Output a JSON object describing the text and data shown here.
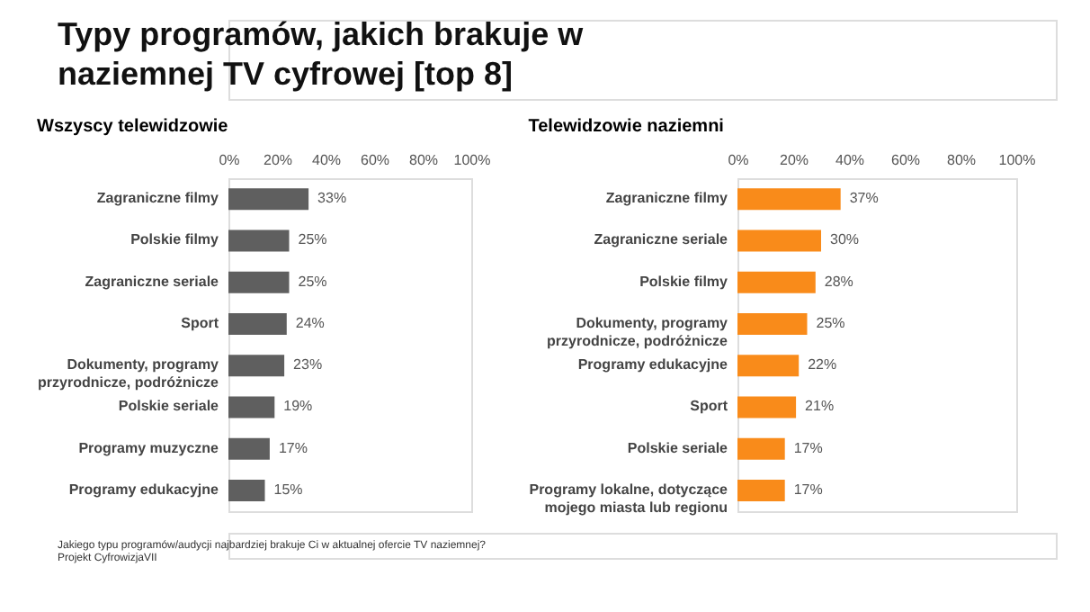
{
  "chart_data": [
    {
      "type": "bar",
      "orientation": "horizontal",
      "title": "Typy programów, jakich brakuje w naziemnej TV cyfrowej [top 8]",
      "subtitle": "Wszyscy telewidzowie",
      "categories": [
        "Zagraniczne filmy",
        "Polskie filmy",
        "Zagraniczne seriale",
        "Sport",
        "Dokumenty, programy przyrodnicze, podróżnicze",
        "Polskie seriale",
        "Programy muzyczne",
        "Programy edukacyjne"
      ],
      "values": [
        33,
        25,
        25,
        24,
        23,
        19,
        17,
        15
      ],
      "value_labels": [
        "33%",
        "25%",
        "25%",
        "24%",
        "23%",
        "19%",
        "17%",
        "15%"
      ],
      "color": "#5f5f5f",
      "xlim": [
        0,
        100
      ],
      "xticks": [
        {
          "value": 0,
          "label": "0%"
        },
        {
          "value": 20,
          "label": "20%"
        },
        {
          "value": 40,
          "label": "40%"
        },
        {
          "value": 60,
          "label": "60%"
        },
        {
          "value": 80,
          "label": "80%"
        },
        {
          "value": 100,
          "label": "100%"
        }
      ],
      "grid": false,
      "annotations": [
        "Jakiego typu programów/audycji najbardziej brakuje Ci w aktualnej ofercie TV naziemnej?",
        "Projekt CyfrowizjaVII"
      ]
    },
    {
      "type": "bar",
      "orientation": "horizontal",
      "subtitle": "Telewidzowie naziemni",
      "categories": [
        "Zagraniczne filmy",
        "Zagraniczne seriale",
        "Polskie filmy",
        "Dokumenty, programy przyrodnicze, podróżnicze",
        "Programy edukacyjne",
        "Sport",
        "Polskie seriale",
        "Programy lokalne, dotyczące mojego miasta lub regionu"
      ],
      "values": [
        37,
        30,
        28,
        25,
        22,
        21,
        17,
        17
      ],
      "value_labels": [
        "37%",
        "30%",
        "28%",
        "25%",
        "22%",
        "21%",
        "17%",
        "17%"
      ],
      "color": "#f98b1a",
      "xlim": [
        0,
        100
      ],
      "xticks": [
        {
          "value": 0,
          "label": "0%"
        },
        {
          "value": 20,
          "label": "20%"
        },
        {
          "value": 40,
          "label": "40%"
        },
        {
          "value": 60,
          "label": "60%"
        },
        {
          "value": 80,
          "label": "80%"
        },
        {
          "value": 100,
          "label": "100%"
        }
      ],
      "grid": false
    }
  ]
}
